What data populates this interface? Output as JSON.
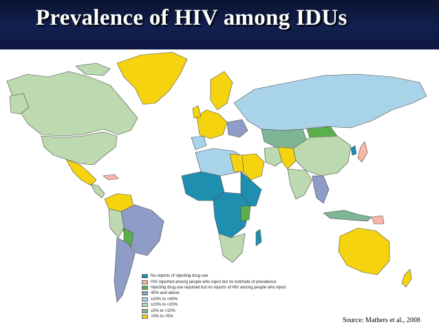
{
  "title": "Prevalence of HIV among IDUs",
  "source": "Source: Mathers et al., 2008",
  "colors": {
    "title_bg": "#12204f",
    "no_reports": "#1f8fb0",
    "hiv_no_estimate": "#f7b8a8",
    "no_hiv_reports": "#5bb04b",
    "p40_plus": "#8f9cc8",
    "p20_40": "#a9d3e8",
    "p10_20": "#bcd9b0",
    "p5_10": "#7fb595",
    "p0_5": "#f5d40f",
    "border": "#4a4a4a"
  },
  "legend": [
    {
      "label": "No reports of injecting drug use",
      "color": "#1f8fb0"
    },
    {
      "label": "HIV reported among people who inject but no estimate of prevalence",
      "color": "#f7b8a8"
    },
    {
      "label": "Injecting drug use reported but no reports of HIV among people who inject",
      "color": "#5bb04b"
    },
    {
      "label": "40% and above",
      "color": "#8f9cc8"
    },
    {
      "label": "≥20% to <40%",
      "color": "#a9d3e8"
    },
    {
      "label": "≥10% to <20%",
      "color": "#bcd9b0"
    },
    {
      "label": "≥5% to <10%",
      "color": "#7fb595"
    },
    {
      "label": ">0% to <5%",
      "color": "#f5d40f"
    }
  ]
}
